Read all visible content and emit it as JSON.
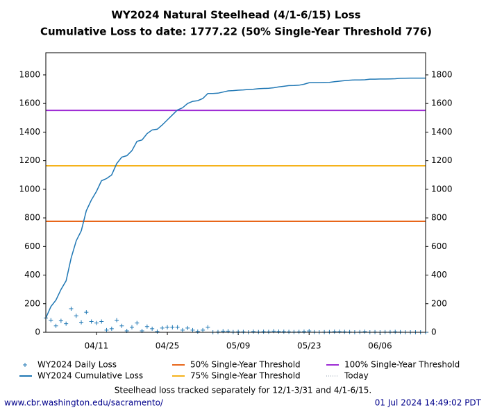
{
  "chart_data": {
    "type": "line",
    "title": "WY2024 Natural Steelhead (4/1-6/15) Loss",
    "subtitle": "Cumulative Loss to date: 1777.22 (50% Single-Year Threshold 776)",
    "x": [
      "04/01",
      "04/02",
      "04/03",
      "04/04",
      "04/05",
      "04/06",
      "04/07",
      "04/08",
      "04/09",
      "04/10",
      "04/11",
      "04/12",
      "04/13",
      "04/14",
      "04/15",
      "04/16",
      "04/17",
      "04/18",
      "04/19",
      "04/20",
      "04/21",
      "04/22",
      "04/23",
      "04/24",
      "04/25",
      "04/26",
      "04/27",
      "04/28",
      "04/29",
      "04/30",
      "05/01",
      "05/02",
      "05/03",
      "05/04",
      "05/05",
      "05/06",
      "05/07",
      "05/08",
      "05/09",
      "05/10",
      "05/11",
      "05/12",
      "05/13",
      "05/14",
      "05/15",
      "05/16",
      "05/17",
      "05/18",
      "05/19",
      "05/20",
      "05/21",
      "05/22",
      "05/23",
      "05/24",
      "05/25",
      "05/26",
      "05/27",
      "05/28",
      "05/29",
      "05/30",
      "05/31",
      "06/01",
      "06/02",
      "06/03",
      "06/04",
      "06/05",
      "06/06",
      "06/07",
      "06/08",
      "06/09",
      "06/10",
      "06/11",
      "06/12",
      "06/13",
      "06/14",
      "06/15"
    ],
    "series": [
      {
        "name": "WY2024 Daily Loss",
        "color": "#1f77b4",
        "marker": "plus",
        "values": [
          100,
          85,
          45,
          80,
          60,
          165,
          115,
          70,
          140,
          75,
          65,
          75,
          15,
          25,
          85,
          45,
          10,
          35,
          65,
          10,
          40,
          25,
          5,
          30,
          35,
          35,
          35,
          15,
          30,
          15,
          5,
          15,
          35,
          0,
          2,
          8,
          8,
          2,
          3,
          3,
          0,
          5,
          2,
          4,
          3,
          8,
          5,
          4,
          3,
          2,
          3,
          4,
          9,
          1,
          0,
          1,
          2,
          4,
          4,
          3,
          2,
          0,
          1,
          4,
          0,
          1,
          0,
          1,
          1,
          3,
          1,
          0,
          0,
          0,
          0,
          0
        ]
      },
      {
        "name": "WY2024 Cumulative Loss",
        "color": "#1f77b4",
        "marker": "line",
        "values": [
          100,
          180,
          225,
          300,
          360,
          520,
          640,
          710,
          850,
          925,
          985,
          1060,
          1075,
          1100,
          1180,
          1225,
          1235,
          1270,
          1335,
          1345,
          1390,
          1415,
          1420,
          1450,
          1485,
          1520,
          1555,
          1570,
          1600,
          1615,
          1620,
          1635,
          1670,
          1670,
          1672,
          1680,
          1688,
          1690,
          1693,
          1695,
          1698,
          1700,
          1703,
          1705,
          1706,
          1710,
          1716,
          1720,
          1725,
          1726,
          1728,
          1735,
          1745,
          1746,
          1746,
          1747,
          1748,
          1752,
          1756,
          1760,
          1763,
          1765,
          1765,
          1766,
          1770,
          1770,
          1771,
          1771,
          1772,
          1773,
          1776,
          1777,
          1777.22,
          1777.22,
          1777.22,
          1777.22
        ]
      }
    ],
    "thresholds": [
      {
        "name": "50% Single-Year Threshold",
        "color": "#e8661a",
        "value": 776
      },
      {
        "name": "75% Single-Year Threshold",
        "color": "#f5b21b",
        "value": 1164
      },
      {
        "name": "100% Single-Year Threshold",
        "color": "#9d2ad4",
        "value": 1552
      }
    ],
    "today": {
      "name": "Today",
      "color": "#8a9aa8"
    },
    "xlim": [
      "04/01",
      "06/15"
    ],
    "xticks": [
      "04/11",
      "04/25",
      "05/09",
      "05/23",
      "06/06"
    ],
    "ylim": [
      0,
      1955
    ],
    "yticks": [
      0,
      200,
      400,
      600,
      800,
      1000,
      1200,
      1400,
      1600,
      1800
    ],
    "note": "Steelhead loss tracked separately for 12/1-3/31 and 4/1-6/15.",
    "source": "www.cbr.washington.edu/sacramento/",
    "timestamp": "01 Jul 2024 14:49:02 PDT"
  }
}
